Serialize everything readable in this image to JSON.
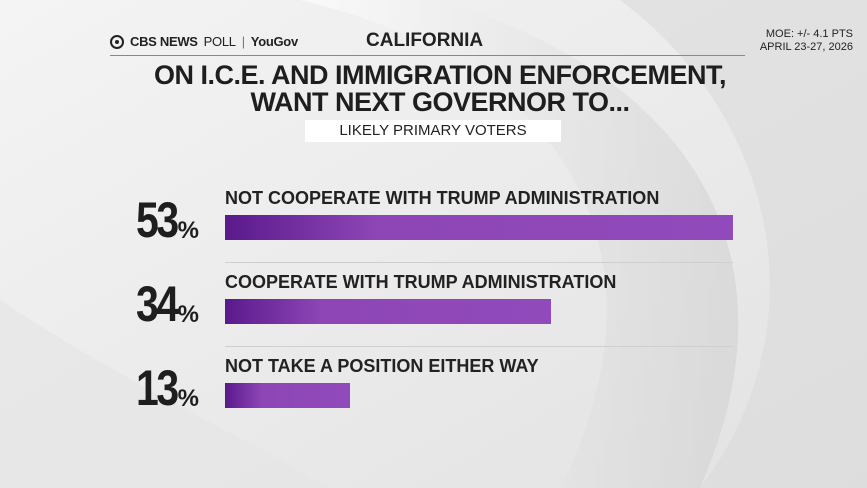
{
  "header": {
    "brand_cbs": "CBS NEWS",
    "brand_poll": "POLL",
    "brand_sep": "|",
    "brand_partner": "YouGov",
    "region": "CALIFORNIA",
    "moe": "MOE: +/- 4.1 PTS",
    "dates": "APRIL 23-27, 2026"
  },
  "colors": {
    "bar": "#8e46b6",
    "bar_dark": "#5a1a8c",
    "text": "#1e1e1e"
  },
  "chart_data": {
    "type": "bar",
    "orientation": "horizontal",
    "title_line1": "ON I.C.E. AND IMMIGRATION ENFORCEMENT,",
    "title_line2": "WANT NEXT GOVERNOR TO...",
    "subtitle": "LIKELY PRIMARY VOTERS",
    "percent_sign": "%",
    "xlim": [
      0,
      53
    ],
    "categories": [
      "NOT COOPERATE WITH TRUMP ADMINISTRATION",
      "COOPERATE WITH TRUMP ADMINISTRATION",
      "NOT TAKE A POSITION EITHER WAY"
    ],
    "values": [
      53,
      34,
      13
    ],
    "value_labels": [
      "53",
      "34",
      "13"
    ]
  }
}
